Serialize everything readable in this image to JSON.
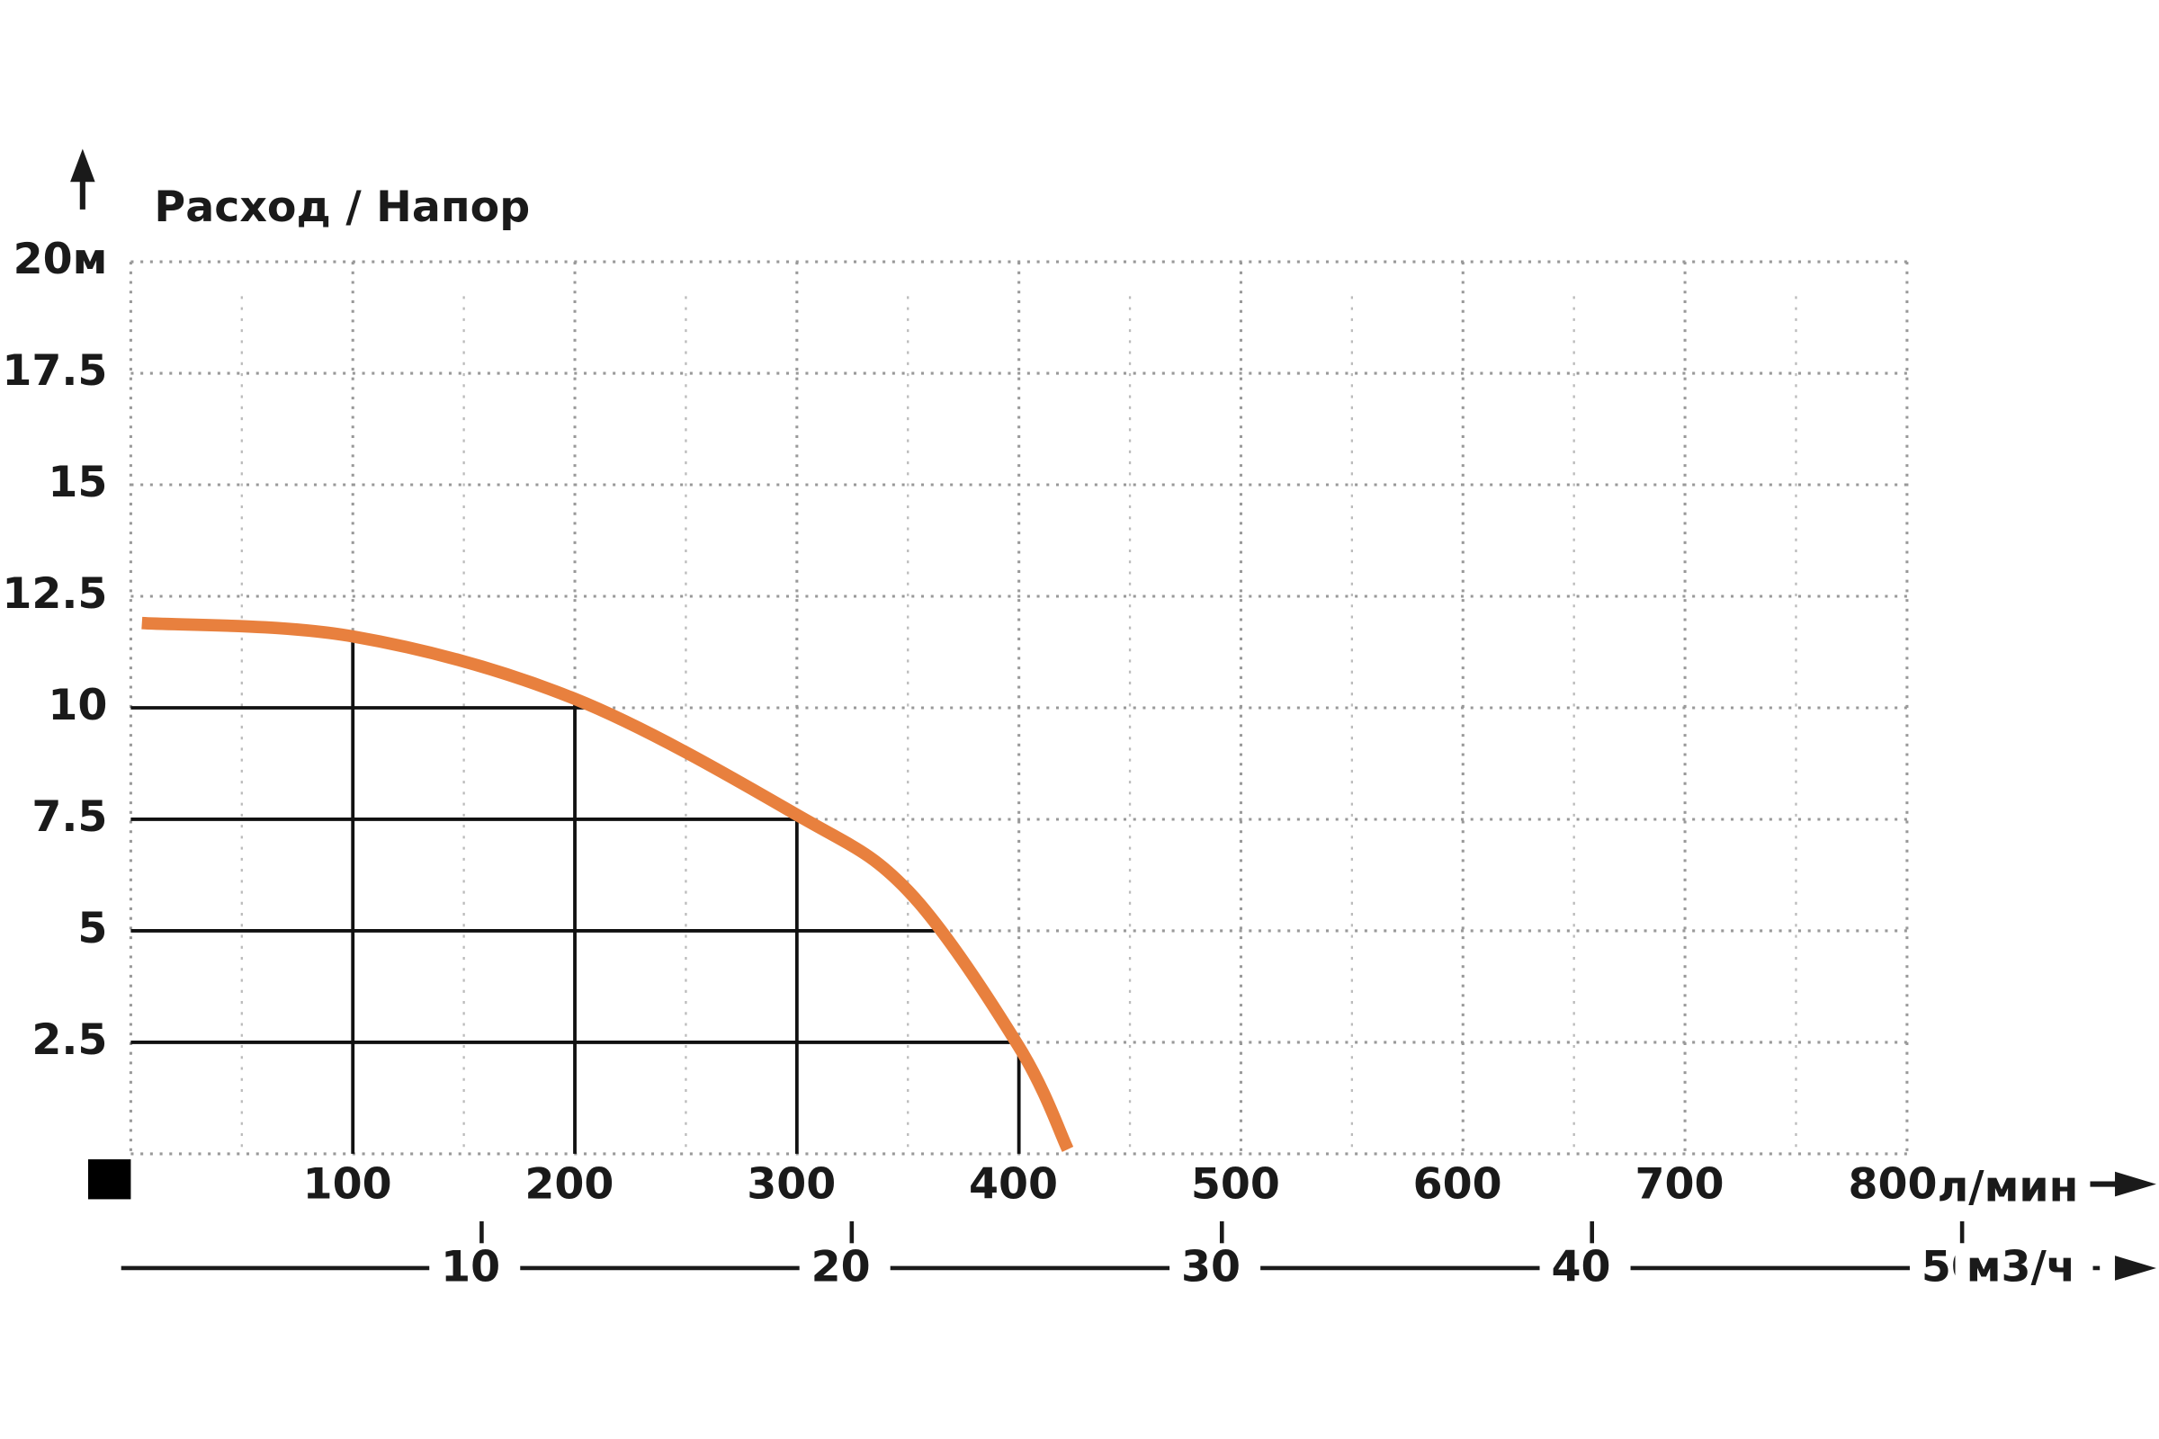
{
  "chart_data": {
    "type": "line",
    "title": "Расход / Напор",
    "x": [
      5,
      100,
      200,
      300,
      350,
      400,
      422
    ],
    "series": [
      {
        "color": "#e8803e",
        "values": [
          11.9,
          11.6,
          10.2,
          7.6,
          5.9,
          2.4,
          0.1
        ]
      }
    ],
    "xlim": [
      0,
      800
    ],
    "xticks": [
      100,
      200,
      300,
      400,
      500,
      600,
      700,
      800
    ],
    "x_unit": "л/мин",
    "ylim": [
      0,
      20
    ],
    "yticks": [
      2.5,
      5,
      7.5,
      10,
      12.5,
      15,
      17.5,
      {
        "value": 20,
        "label": "20м"
      }
    ],
    "x2lim": [
      0,
      50
    ],
    "x2ticks": [
      10,
      20,
      30,
      40,
      50
    ],
    "x2_unit": "м3/ч",
    "grid": true,
    "minor_grid": true
  }
}
